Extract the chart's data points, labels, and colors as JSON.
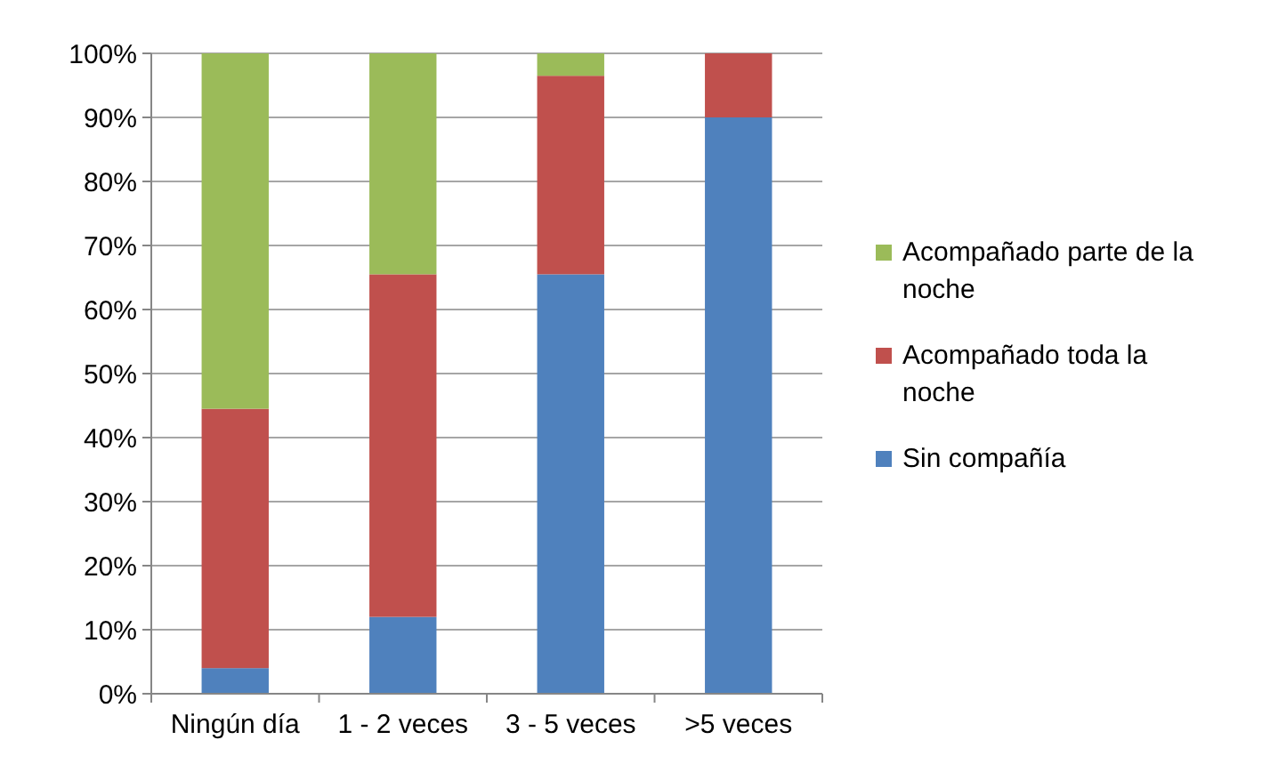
{
  "chart_data": {
    "type": "bar",
    "stacked": true,
    "categories": [
      "Ningún día",
      "1 - 2 veces",
      "3 - 5 veces",
      ">5 veces"
    ],
    "series": [
      {
        "name": "Sin compañía",
        "color": "#4f81bd",
        "values": [
          4,
          12,
          65.5,
          90
        ]
      },
      {
        "name": "Acompañado toda la noche",
        "color": "#c0504d",
        "values": [
          40.5,
          53.5,
          31,
          10
        ]
      },
      {
        "name": "Acompañado parte de la noche",
        "color": "#9bbb59",
        "values": [
          55.5,
          34.5,
          3.5,
          0
        ]
      }
    ],
    "ylim": [
      0,
      100
    ],
    "yticks": [
      {
        "value": 0,
        "label": "0%"
      },
      {
        "value": 10,
        "label": "10%"
      },
      {
        "value": 20,
        "label": "20%"
      },
      {
        "value": 30,
        "label": "30%"
      },
      {
        "value": 40,
        "label": "40%"
      },
      {
        "value": 50,
        "label": "50%"
      },
      {
        "value": 60,
        "label": "60%"
      },
      {
        "value": 70,
        "label": "70%"
      },
      {
        "value": 80,
        "label": "80%"
      },
      {
        "value": 90,
        "label": "90%"
      },
      {
        "value": 100,
        "label": "100%"
      }
    ],
    "grid": "y",
    "legend": "right"
  }
}
